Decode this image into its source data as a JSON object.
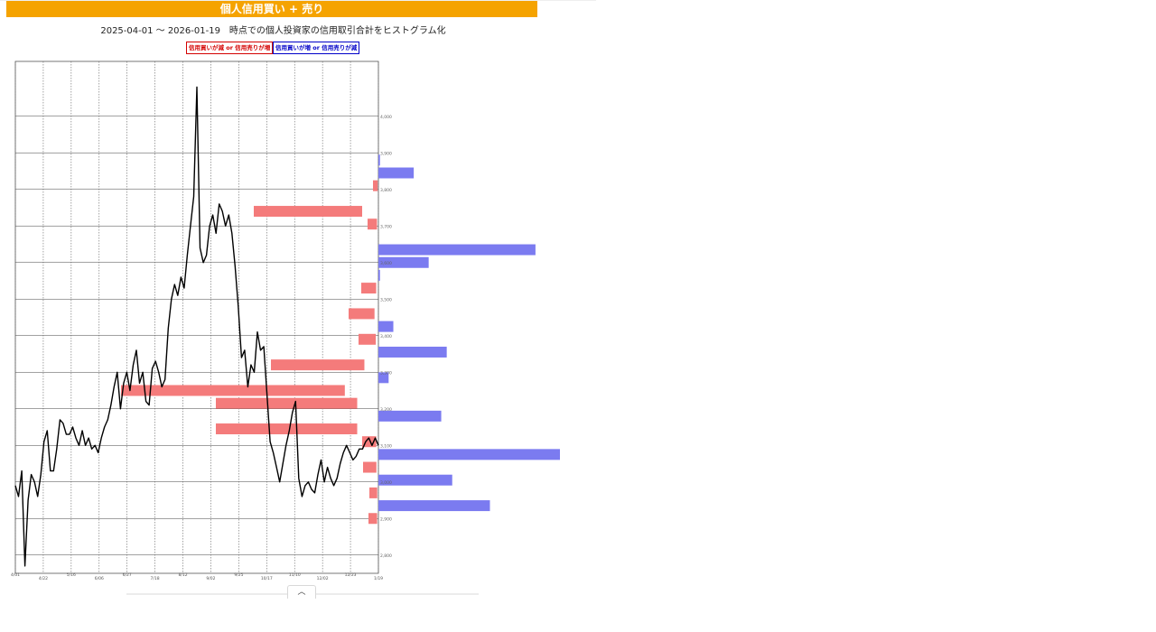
{
  "header": {
    "title": "個人信用買い + 売り"
  },
  "subtitle": "2025-04-01 〜 2026-01-19　時点での個人投資家の信用取引合計をヒストグラム化",
  "legend": {
    "increase_red": "信用買いが減 or 信用売りが増",
    "increase_blue": "信用買いが増 or 信用売りが減"
  },
  "colors": {
    "header": "#f5a300",
    "red_bar": "#f47b7b",
    "blue_bar": "#7b7bf0",
    "line": "#000000"
  },
  "icons": {
    "scroll_top": "chevron-up-icon"
  },
  "chart_data": {
    "type": "line",
    "title": "個人信用買い + 売り",
    "x_ticks": [
      "4/01",
      "4/22",
      "5/16",
      "6/06",
      "6/27",
      "7/18",
      "8/12",
      "9/02",
      "9/25",
      "10/17",
      "11/10",
      "12/02",
      "12/23",
      "1/19"
    ],
    "y_ticks": [
      2800,
      2900,
      3000,
      3100,
      3200,
      3300,
      3400,
      3500,
      3600,
      3700,
      3800,
      3900,
      4000
    ],
    "ylim": [
      2750,
      4150
    ],
    "grid": true,
    "series": [
      {
        "values": [
          2990,
          2960,
          3030,
          2770,
          2950,
          3020,
          3000,
          2960,
          3020,
          3110,
          3140,
          3030,
          3030,
          3090,
          3170,
          3160,
          3130,
          3130,
          3150,
          3120,
          3100,
          3140,
          3100,
          3120,
          3090,
          3100,
          3080,
          3120,
          3150,
          3170,
          3210,
          3260,
          3300,
          3200,
          3270,
          3300,
          3250,
          3320,
          3360,
          3270,
          3300,
          3220,
          3210,
          3310,
          3330,
          3300,
          3260,
          3280,
          3420,
          3500,
          3540,
          3510,
          3560,
          3530,
          3620,
          3700,
          3780,
          4080,
          3640,
          3600,
          3620,
          3700,
          3730,
          3680,
          3760,
          3740,
          3700,
          3730,
          3680,
          3590,
          3480,
          3340,
          3360,
          3260,
          3320,
          3300,
          3410,
          3360,
          3370,
          3240,
          3110,
          3080,
          3040,
          3000,
          3050,
          3100,
          3140,
          3190,
          3220,
          3010,
          2960,
          2990,
          3000,
          2980,
          2970,
          3020,
          3060,
          3000,
          3040,
          3010,
          2990,
          3010,
          3050,
          3080,
          3100,
          3080,
          3060,
          3070,
          3090,
          3090,
          3110,
          3120,
          3100,
          3120,
          3100
        ],
        "bars_blue": [],
        "bars_red": []
      }
    ],
    "histogram": {
      "levels": [
        3950,
        3915,
        3880,
        3845,
        3810,
        3775,
        3740,
        3705,
        3670,
        3635,
        3600,
        3565,
        3530,
        3495,
        3460,
        3425,
        3390,
        3355,
        3320,
        3285,
        3250,
        3215,
        3180,
        3145,
        3110,
        3075,
        3040,
        3005,
        2970,
        2935,
        2900
      ],
      "values": [
        0,
        0,
        2,
        45,
        -6,
        0,
        -138,
        -12,
        0,
        200,
        64,
        2,
        -19,
        0,
        -33,
        19,
        -22,
        87,
        -119,
        13,
        -285,
        -180,
        80,
        -180,
        -18,
        241,
        -17,
        94,
        -10,
        142,
        -11
      ]
    }
  }
}
